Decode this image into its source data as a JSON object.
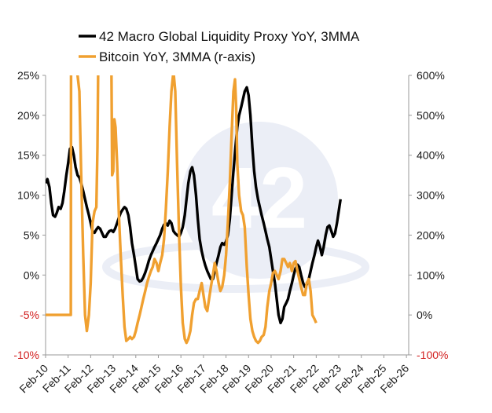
{
  "chart_data": {
    "type": "line",
    "title": "",
    "xlabel": "",
    "ylabel": "",
    "x_ticks": [
      "Feb-10",
      "Feb-11",
      "Feb-12",
      "Feb-13",
      "Feb-14",
      "Feb-15",
      "Feb-16",
      "Feb-17",
      "Feb-18",
      "Feb-19",
      "Feb-20",
      "Feb-21",
      "Feb-22",
      "Feb-23",
      "Feb-24",
      "Feb-25",
      "Feb-26"
    ],
    "y_left": {
      "lim": [
        -10,
        25
      ],
      "ticks": [
        25,
        20,
        15,
        10,
        5,
        0,
        -5,
        -10
      ],
      "labels": [
        "25%",
        "20%",
        "15%",
        "10%",
        "5%",
        "0%",
        "-5%",
        "-10%"
      ]
    },
    "y_right": {
      "lim": [
        -100,
        600
      ],
      "ticks": [
        600,
        500,
        400,
        300,
        200,
        100,
        0,
        -100
      ],
      "labels": [
        "600%",
        "500%",
        "400%",
        "300%",
        "200%",
        "100%",
        "0%",
        "-100%"
      ]
    },
    "grid": false,
    "legend_position": "top-left",
    "series": [
      {
        "name": "42 Macro Global Liquidity Proxy YoY, 3MMA",
        "axis": "left",
        "color": "#000000",
        "points": [
          [
            2010.0,
            11.5
          ],
          [
            2010.08,
            12.0
          ],
          [
            2010.17,
            11.0
          ],
          [
            2010.25,
            9.0
          ],
          [
            2010.33,
            7.5
          ],
          [
            2010.42,
            7.3
          ],
          [
            2010.5,
            7.8
          ],
          [
            2010.58,
            8.5
          ],
          [
            2010.67,
            8.3
          ],
          [
            2010.75,
            9.0
          ],
          [
            2010.83,
            10.5
          ],
          [
            2010.92,
            12.5
          ],
          [
            2011.0,
            14.0
          ],
          [
            2011.08,
            15.8
          ],
          [
            2011.17,
            16.0
          ],
          [
            2011.25,
            15.0
          ],
          [
            2011.33,
            13.5
          ],
          [
            2011.42,
            12.5
          ],
          [
            2011.5,
            12.2
          ],
          [
            2011.58,
            11.5
          ],
          [
            2011.67,
            10.5
          ],
          [
            2011.75,
            9.5
          ],
          [
            2011.83,
            8.5
          ],
          [
            2011.92,
            7.5
          ],
          [
            2012.0,
            6.5
          ],
          [
            2012.08,
            5.5
          ],
          [
            2012.17,
            5.3
          ],
          [
            2012.25,
            5.7
          ],
          [
            2012.33,
            6.0
          ],
          [
            2012.42,
            5.8
          ],
          [
            2012.5,
            5.3
          ],
          [
            2012.58,
            4.8
          ],
          [
            2012.67,
            4.8
          ],
          [
            2012.75,
            5.2
          ],
          [
            2012.83,
            5.5
          ],
          [
            2012.92,
            5.6
          ],
          [
            2013.0,
            5.4
          ],
          [
            2013.08,
            5.8
          ],
          [
            2013.17,
            6.5
          ],
          [
            2013.25,
            7.2
          ],
          [
            2013.33,
            7.8
          ],
          [
            2013.42,
            8.2
          ],
          [
            2013.5,
            8.5
          ],
          [
            2013.58,
            8.3
          ],
          [
            2013.67,
            7.5
          ],
          [
            2013.75,
            6.0
          ],
          [
            2013.83,
            4.0
          ],
          [
            2013.92,
            2.5
          ],
          [
            2014.0,
            1.0
          ],
          [
            2014.08,
            -0.5
          ],
          [
            2014.17,
            -0.8
          ],
          [
            2014.25,
            -0.7
          ],
          [
            2014.33,
            -0.3
          ],
          [
            2014.42,
            0.3
          ],
          [
            2014.5,
            1.0
          ],
          [
            2014.58,
            1.8
          ],
          [
            2014.67,
            2.5
          ],
          [
            2014.75,
            3.0
          ],
          [
            2014.83,
            3.5
          ],
          [
            2014.92,
            4.0
          ],
          [
            2015.0,
            4.5
          ],
          [
            2015.08,
            5.0
          ],
          [
            2015.17,
            5.8
          ],
          [
            2015.25,
            6.3
          ],
          [
            2015.33,
            6.5
          ],
          [
            2015.42,
            6.2
          ],
          [
            2015.5,
            6.8
          ],
          [
            2015.58,
            6.5
          ],
          [
            2015.67,
            5.5
          ],
          [
            2015.75,
            5.2
          ],
          [
            2015.83,
            5.0
          ],
          [
            2015.92,
            4.8
          ],
          [
            2016.0,
            5.3
          ],
          [
            2016.08,
            6.0
          ],
          [
            2016.17,
            7.5
          ],
          [
            2016.25,
            9.5
          ],
          [
            2016.33,
            11.5
          ],
          [
            2016.42,
            13.0
          ],
          [
            2016.5,
            13.5
          ],
          [
            2016.58,
            12.5
          ],
          [
            2016.67,
            10.0
          ],
          [
            2016.75,
            7.0
          ],
          [
            2016.83,
            4.5
          ],
          [
            2016.92,
            3.0
          ],
          [
            2017.0,
            2.0
          ],
          [
            2017.08,
            1.2
          ],
          [
            2017.17,
            0.5
          ],
          [
            2017.25,
            0.0
          ],
          [
            2017.33,
            -0.5
          ],
          [
            2017.42,
            -0.5
          ],
          [
            2017.5,
            0.5
          ],
          [
            2017.58,
            1.5
          ],
          [
            2017.67,
            2.5
          ],
          [
            2017.75,
            3.5
          ],
          [
            2017.83,
            4.0
          ],
          [
            2017.92,
            3.8
          ],
          [
            2018.0,
            4.2
          ],
          [
            2018.08,
            5.0
          ],
          [
            2018.17,
            7.0
          ],
          [
            2018.25,
            10.0
          ],
          [
            2018.33,
            13.0
          ],
          [
            2018.42,
            16.0
          ],
          [
            2018.5,
            18.5
          ],
          [
            2018.58,
            20.0
          ],
          [
            2018.67,
            21.0
          ],
          [
            2018.75,
            22.0
          ],
          [
            2018.83,
            23.0
          ],
          [
            2018.92,
            23.5
          ],
          [
            2019.0,
            22.5
          ],
          [
            2019.08,
            20.0
          ],
          [
            2019.17,
            16.0
          ],
          [
            2019.25,
            13.0
          ],
          [
            2019.33,
            11.0
          ],
          [
            2019.42,
            9.5
          ],
          [
            2019.5,
            8.5
          ],
          [
            2019.58,
            7.5
          ],
          [
            2019.67,
            6.5
          ],
          [
            2019.75,
            5.5
          ],
          [
            2019.83,
            4.5
          ],
          [
            2019.92,
            3.5
          ],
          [
            2020.0,
            2.0
          ],
          [
            2020.08,
            0.5
          ],
          [
            2020.17,
            -1.0
          ],
          [
            2020.25,
            -3.0
          ],
          [
            2020.33,
            -5.0
          ],
          [
            2020.42,
            -6.0
          ],
          [
            2020.5,
            -5.5
          ],
          [
            2020.58,
            -4.0
          ],
          [
            2020.67,
            -3.5
          ],
          [
            2020.75,
            -3.0
          ],
          [
            2020.83,
            -2.0
          ],
          [
            2020.92,
            -1.0
          ],
          [
            2021.0,
            0.0
          ],
          [
            2021.08,
            0.8
          ],
          [
            2021.17,
            1.3
          ],
          [
            2021.25,
            1.0
          ],
          [
            2021.33,
            0.0
          ],
          [
            2021.42,
            -1.0
          ],
          [
            2021.5,
            -1.5
          ],
          [
            2021.58,
            -1.2
          ],
          [
            2021.67,
            -0.5
          ],
          [
            2021.75,
            0.5
          ],
          [
            2021.83,
            1.5
          ],
          [
            2021.92,
            2.5
          ],
          [
            2022.0,
            3.5
          ],
          [
            2022.08,
            4.3
          ],
          [
            2022.17,
            3.5
          ],
          [
            2022.25,
            2.5
          ],
          [
            2022.33,
            3.5
          ],
          [
            2022.42,
            5.0
          ],
          [
            2022.5,
            6.0
          ],
          [
            2022.58,
            6.2
          ],
          [
            2022.67,
            5.5
          ],
          [
            2022.75,
            4.8
          ],
          [
            2022.83,
            5.2
          ],
          [
            2022.92,
            6.5
          ],
          [
            2023.0,
            8.0
          ],
          [
            2023.08,
            9.5
          ]
        ]
      },
      {
        "name": "Bitcoin YoY, 3MMA (r-axis)",
        "axis": "right",
        "color": "#f0a030",
        "points": [
          [
            2010.0,
            0
          ],
          [
            2011.0,
            0
          ],
          [
            2011.08,
            0
          ],
          [
            2011.12,
            0
          ],
          [
            2011.13,
            610
          ],
          [
            2011.33,
            610
          ],
          [
            2011.42,
            600
          ],
          [
            2011.5,
            560
          ],
          [
            2011.58,
            350
          ],
          [
            2011.67,
            150
          ],
          [
            2011.75,
            0
          ],
          [
            2011.83,
            -40
          ],
          [
            2011.92,
            0
          ],
          [
            2012.0,
            80
          ],
          [
            2012.08,
            230
          ],
          [
            2012.17,
            260
          ],
          [
            2012.25,
            270
          ],
          [
            2012.3,
            420
          ],
          [
            2012.33,
            610
          ],
          [
            2012.92,
            610
          ],
          [
            2012.95,
            350
          ],
          [
            2013.0,
            360
          ],
          [
            2013.05,
            490
          ],
          [
            2013.1,
            470
          ],
          [
            2013.17,
            380
          ],
          [
            2013.25,
            250
          ],
          [
            2013.33,
            150
          ],
          [
            2013.42,
            50
          ],
          [
            2013.5,
            -30
          ],
          [
            2013.58,
            -65
          ],
          [
            2013.67,
            -60
          ],
          [
            2013.75,
            -55
          ],
          [
            2013.83,
            -60
          ],
          [
            2013.92,
            -55
          ],
          [
            2014.0,
            -40
          ],
          [
            2014.08,
            -20
          ],
          [
            2014.17,
            0
          ],
          [
            2014.25,
            20
          ],
          [
            2014.33,
            40
          ],
          [
            2014.42,
            60
          ],
          [
            2014.5,
            80
          ],
          [
            2014.58,
            95
          ],
          [
            2014.67,
            110
          ],
          [
            2014.75,
            120
          ],
          [
            2014.83,
            140
          ],
          [
            2014.92,
            130
          ],
          [
            2015.0,
            110
          ],
          [
            2015.08,
            130
          ],
          [
            2015.17,
            150
          ],
          [
            2015.25,
            190
          ],
          [
            2015.33,
            260
          ],
          [
            2015.42,
            360
          ],
          [
            2015.5,
            470
          ],
          [
            2015.58,
            560
          ],
          [
            2015.67,
            610
          ],
          [
            2015.75,
            560
          ],
          [
            2015.83,
            380
          ],
          [
            2015.92,
            200
          ],
          [
            2016.0,
            70
          ],
          [
            2016.08,
            -20
          ],
          [
            2016.17,
            -60
          ],
          [
            2016.25,
            -70
          ],
          [
            2016.33,
            -60
          ],
          [
            2016.42,
            -40
          ],
          [
            2016.5,
            0
          ],
          [
            2016.58,
            30
          ],
          [
            2016.67,
            40
          ],
          [
            2016.75,
            40
          ],
          [
            2016.83,
            60
          ],
          [
            2016.92,
            80
          ],
          [
            2017.0,
            50
          ],
          [
            2017.08,
            20
          ],
          [
            2017.17,
            10
          ],
          [
            2017.25,
            40
          ],
          [
            2017.33,
            70
          ],
          [
            2017.42,
            100
          ],
          [
            2017.5,
            130
          ],
          [
            2017.58,
            110
          ],
          [
            2017.67,
            80
          ],
          [
            2017.75,
            60
          ],
          [
            2017.83,
            70
          ],
          [
            2017.92,
            100
          ],
          [
            2018.0,
            150
          ],
          [
            2018.08,
            230
          ],
          [
            2018.17,
            330
          ],
          [
            2018.25,
            450
          ],
          [
            2018.33,
            560
          ],
          [
            2018.4,
            590
          ],
          [
            2018.45,
            520
          ],
          [
            2018.5,
            380
          ],
          [
            2018.58,
            300
          ],
          [
            2018.67,
            260
          ],
          [
            2018.75,
            250
          ],
          [
            2018.83,
            220
          ],
          [
            2018.92,
            120
          ],
          [
            2019.0,
            50
          ],
          [
            2019.08,
            -10
          ],
          [
            2019.17,
            -40
          ],
          [
            2019.25,
            -55
          ],
          [
            2019.33,
            -65
          ],
          [
            2019.42,
            -70
          ],
          [
            2019.5,
            -65
          ],
          [
            2019.58,
            -55
          ],
          [
            2019.67,
            -50
          ],
          [
            2019.75,
            -30
          ],
          [
            2019.83,
            20
          ],
          [
            2019.92,
            60
          ],
          [
            2020.0,
            80
          ],
          [
            2020.08,
            105
          ],
          [
            2020.17,
            110
          ],
          [
            2020.25,
            100
          ],
          [
            2020.33,
            90
          ],
          [
            2020.42,
            110
          ],
          [
            2020.5,
            140
          ],
          [
            2020.58,
            140
          ],
          [
            2020.67,
            130
          ],
          [
            2020.75,
            120
          ],
          [
            2020.83,
            130
          ],
          [
            2020.92,
            110
          ],
          [
            2021.0,
            130
          ],
          [
            2021.08,
            135
          ],
          [
            2021.17,
            110
          ],
          [
            2021.25,
            90
          ],
          [
            2021.33,
            70
          ],
          [
            2021.42,
            50
          ],
          [
            2021.5,
            50
          ],
          [
            2021.58,
            80
          ],
          [
            2021.67,
            90
          ],
          [
            2021.75,
            60
          ],
          [
            2021.83,
            0
          ],
          [
            2021.92,
            -10
          ],
          [
            2022.0,
            -20
          ]
        ]
      }
    ]
  }
}
